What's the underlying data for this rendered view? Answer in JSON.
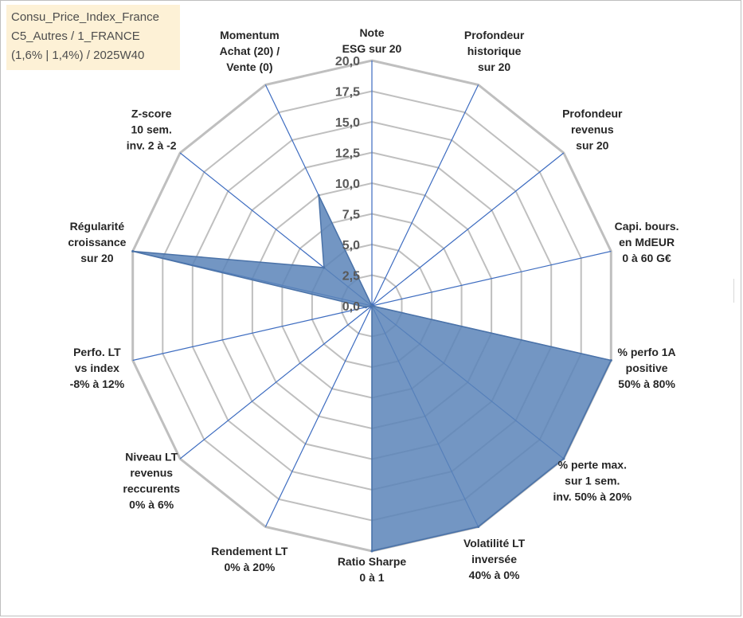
{
  "info_box": {
    "line1": "Consu_Price_Index_France",
    "line2": "C5_Autres / 1_FRANCE",
    "line3": "(1,6% | 1,4%) / 2025W40"
  },
  "colors": {
    "fill": "#5b84b8",
    "stroke": "#4a72a8",
    "spoke": "#3d6cc0",
    "ring": "#bfbfbf",
    "info_bg": "#fdf1d6"
  },
  "chart_data": {
    "type": "radar",
    "title": "Consu_Price_Index_France",
    "r_range": [
      0,
      20
    ],
    "tick_step": 2.5,
    "tick_labels": [
      "0,0",
      "2,5",
      "5,0",
      "7,5",
      "10,0",
      "12,5",
      "15,0",
      "17,5",
      "20,0"
    ],
    "grid": true,
    "axes": [
      {
        "lines": [
          "Note",
          "ESG sur 20"
        ]
      },
      {
        "lines": [
          "Profondeur",
          "historique",
          "sur 20"
        ]
      },
      {
        "lines": [
          "Profondeur",
          "revenus",
          "sur 20"
        ]
      },
      {
        "lines": [
          "Capi. bours.",
          "en MdEUR",
          "0 à 60 G€"
        ]
      },
      {
        "lines": [
          "% perfo 1A",
          "positive",
          "50% à 80%"
        ]
      },
      {
        "lines": [
          "% perte max.",
          "sur 1 sem.",
          "inv. 50% à 20%"
        ]
      },
      {
        "lines": [
          "Volatilité LT",
          "inversée",
          "40% à 0%"
        ]
      },
      {
        "lines": [
          "Ratio Sharpe",
          "0 à 1"
        ]
      },
      {
        "lines": [
          "Rendement LT",
          "0% à 20%"
        ]
      },
      {
        "lines": [
          "Niveau LT",
          "revenus",
          "reccurents",
          "0% à 6%"
        ]
      },
      {
        "lines": [
          "Perfo. LT",
          "vs index",
          "-8% à 12%"
        ]
      },
      {
        "lines": [
          "Régularité",
          "croissance",
          "sur 20"
        ]
      },
      {
        "lines": [
          "Z-score",
          "10 sem.",
          "inv. 2 à -2"
        ]
      },
      {
        "lines": [
          "Momentum",
          "Achat (20) /",
          "Vente (0)"
        ]
      }
    ],
    "series": [
      {
        "name": "Consu_Price_Index_France",
        "values": [
          0,
          0,
          0,
          0,
          20,
          20,
          20,
          20,
          0,
          0,
          0.5,
          20,
          5,
          10
        ]
      }
    ]
  }
}
